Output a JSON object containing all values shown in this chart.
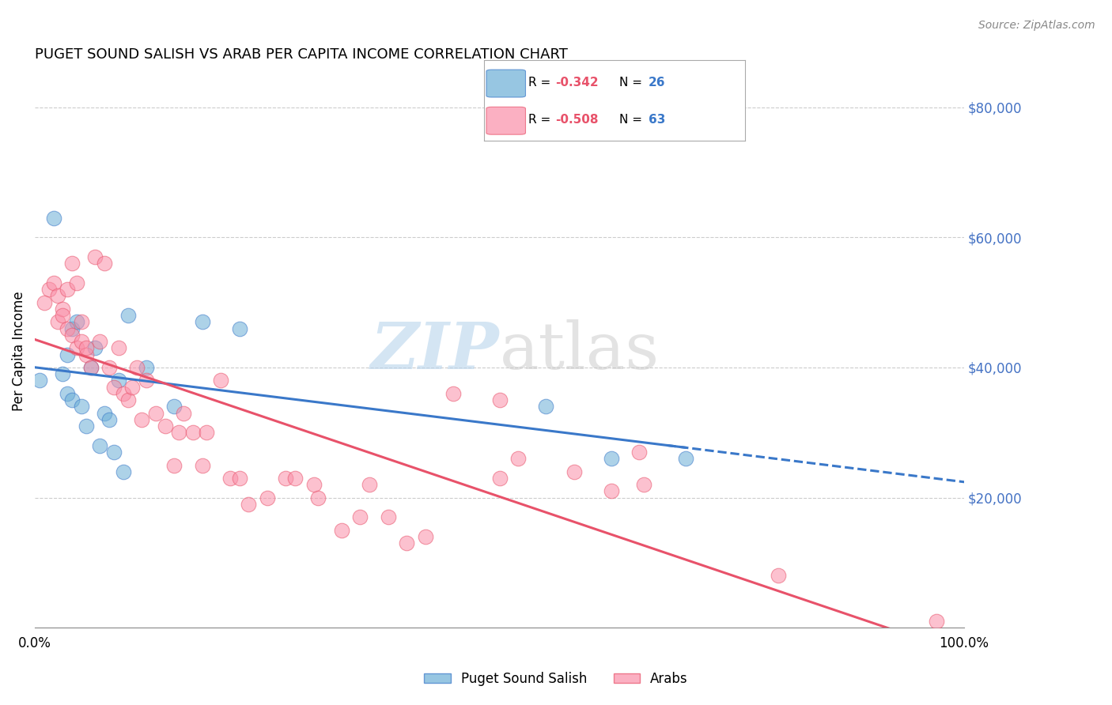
{
  "title": "PUGET SOUND SALISH VS ARAB PER CAPITA INCOME CORRELATION CHART",
  "source": "Source: ZipAtlas.com",
  "ylabel": "Per Capita Income",
  "legend_label1": "Puget Sound Salish",
  "legend_label2": "Arabs",
  "blue_color": "#6BAED6",
  "pink_color": "#FA8FA8",
  "blue_line_color": "#3A78C9",
  "pink_line_color": "#E8526A",
  "watermark_zip": "ZIP",
  "watermark_atlas": "atlas",
  "salish_points_x": [
    0.5,
    2.0,
    3.0,
    3.5,
    3.5,
    4.0,
    4.0,
    4.5,
    5.0,
    5.5,
    6.0,
    6.5,
    7.0,
    7.5,
    8.0,
    8.5,
    9.0,
    9.5,
    10.0,
    12.0,
    15.0,
    18.0,
    22.0,
    55.0,
    62.0,
    70.0
  ],
  "salish_points_y": [
    38000,
    63000,
    39000,
    36000,
    42000,
    35000,
    46000,
    47000,
    34000,
    31000,
    40000,
    43000,
    28000,
    33000,
    32000,
    27000,
    38000,
    24000,
    48000,
    40000,
    34000,
    47000,
    46000,
    34000,
    26000,
    26000
  ],
  "arab_points_x": [
    1.0,
    1.5,
    2.0,
    2.5,
    2.5,
    3.0,
    3.0,
    3.5,
    3.5,
    4.0,
    4.0,
    4.5,
    4.5,
    5.0,
    5.0,
    5.5,
    5.5,
    6.0,
    6.5,
    7.0,
    7.5,
    8.0,
    8.5,
    9.0,
    9.5,
    10.0,
    10.5,
    11.0,
    11.5,
    12.0,
    13.0,
    14.0,
    15.0,
    15.5,
    16.0,
    17.0,
    18.0,
    18.5,
    20.0,
    21.0,
    22.0,
    23.0,
    25.0,
    27.0,
    28.0,
    30.0,
    30.5,
    33.0,
    35.0,
    36.0,
    38.0,
    40.0,
    42.0,
    45.0,
    50.0,
    50.0,
    52.0,
    58.0,
    62.0,
    65.0,
    65.5,
    80.0,
    97.0
  ],
  "arab_points_y": [
    50000,
    52000,
    53000,
    51000,
    47000,
    49000,
    48000,
    46000,
    52000,
    56000,
    45000,
    43000,
    53000,
    47000,
    44000,
    42000,
    43000,
    40000,
    57000,
    44000,
    56000,
    40000,
    37000,
    43000,
    36000,
    35000,
    37000,
    40000,
    32000,
    38000,
    33000,
    31000,
    25000,
    30000,
    33000,
    30000,
    25000,
    30000,
    38000,
    23000,
    23000,
    19000,
    20000,
    23000,
    23000,
    22000,
    20000,
    15000,
    17000,
    22000,
    17000,
    13000,
    14000,
    36000,
    35000,
    23000,
    26000,
    24000,
    21000,
    27000,
    22000,
    8000,
    1000
  ],
  "xmin": 0,
  "xmax": 100,
  "ymin": 0,
  "ymax": 85000
}
